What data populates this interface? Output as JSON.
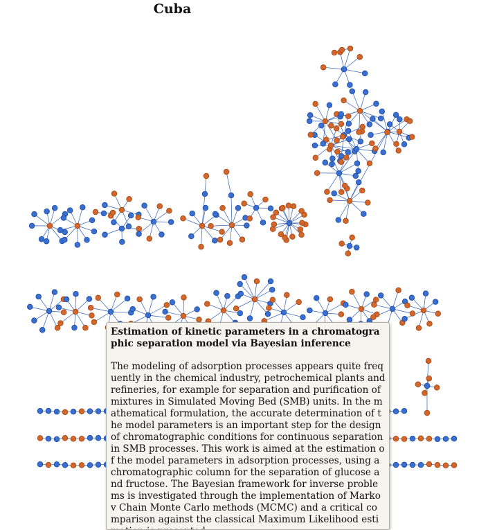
{
  "graph": {
    "title": "Cuba",
    "colors": {
      "blue": "#3a6fd0",
      "orange": "#d2662b",
      "edge": "#2f5fb8"
    }
  },
  "tooltip": {
    "title": "Estimation of kinetic parameters in a chromatographic separation model via Bayesian inference",
    "abstract": "The modeling of adsorption processes appears quite frequently in the chemical industry, petrochemical plants and refineries, for example for separation and purification of mixtures in Simulated Moving Bed (SMB) units. In the mathematical formulation, the accurate determination of the model parameters is an important step for the design of chromatographic conditions for continuous separation in SMB processes. This work is aimed at the estimation of the model parameters in adsorption processes, using a chromatographic column for the separation of glucose and fructose. The Bayesian framework for inverse problems is investigated through the implementation of Markov Chain Monte Carlo methods (MCMC) and a critical comparison against the classical Maximum Likelihood estimation is presented."
  }
}
